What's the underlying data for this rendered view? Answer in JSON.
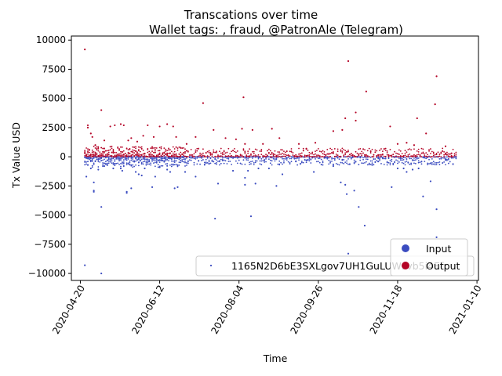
{
  "chart_data": {
    "type": "scatter",
    "suptitle": "Transcations over time",
    "title": "Wallet tags: , fraud, @PatronAle (Telegram)",
    "xlabel": "Time",
    "ylabel": "Tx Value USD",
    "xlim": [
      "2020-04-14",
      "2021-01-11"
    ],
    "ylim": [
      -10600,
      10350
    ],
    "x_ticks": [
      "2020-04-20",
      "2020-06-12",
      "2020-08-04",
      "2020-09-26",
      "2020-11-18",
      "2021-01-10"
    ],
    "y_ticks": [
      -10000,
      -7500,
      -5000,
      -2500,
      0,
      2500,
      5000,
      7500,
      10000
    ],
    "y_tick_labels": [
      "−10000",
      "−7500",
      "−5000",
      "−2500",
      "0",
      "2500",
      "5000",
      "7500",
      "10000"
    ],
    "grid": false,
    "legend_location": "lower right",
    "series": [
      {
        "name": "Input",
        "color": "#3b4cc0",
        "points": [
          [
            "2020-04-23",
            -9300
          ],
          [
            "2020-04-24",
            -1700
          ],
          [
            "2020-04-25",
            -700
          ],
          [
            "2020-04-27",
            -1000
          ],
          [
            "2020-04-29",
            -2200
          ],
          [
            "2020-04-29",
            -2900
          ],
          [
            "2020-04-29",
            -3000
          ],
          [
            "2020-05-02",
            -1100
          ],
          [
            "2020-05-04",
            -4300
          ],
          [
            "2020-05-04",
            -10000
          ],
          [
            "2020-05-06",
            -800
          ],
          [
            "2020-05-08",
            -700
          ],
          [
            "2020-05-12",
            -1000
          ],
          [
            "2020-05-13",
            -600
          ],
          [
            "2020-05-17",
            -1000
          ],
          [
            "2020-05-18",
            -1200
          ],
          [
            "2020-05-21",
            -3000
          ],
          [
            "2020-05-21",
            -3100
          ],
          [
            "2020-05-24",
            -2700
          ],
          [
            "2020-05-27",
            -1300
          ],
          [
            "2020-05-29",
            -1500
          ],
          [
            "2020-05-31",
            -1600
          ],
          [
            "2020-06-02",
            -1000
          ],
          [
            "2020-06-05",
            -400
          ],
          [
            "2020-06-07",
            -2600
          ],
          [
            "2020-06-09",
            -1700
          ],
          [
            "2020-06-12",
            -900
          ],
          [
            "2020-06-17",
            -1100
          ],
          [
            "2020-06-19",
            -1300
          ],
          [
            "2020-06-22",
            -2700
          ],
          [
            "2020-06-24",
            -2600
          ],
          [
            "2020-06-29",
            -1300
          ],
          [
            "2020-07-06",
            -1700
          ],
          [
            "2020-07-15",
            -600
          ],
          [
            "2020-07-19",
            -5300
          ],
          [
            "2020-07-21",
            -2300
          ],
          [
            "2020-07-31",
            -1200
          ],
          [
            "2020-08-08",
            -2400
          ],
          [
            "2020-08-08",
            -1800
          ],
          [
            "2020-08-10",
            -1200
          ],
          [
            "2020-08-12",
            -5100
          ],
          [
            "2020-08-15",
            -2300
          ],
          [
            "2020-08-17",
            -1000
          ],
          [
            "2020-08-24",
            -1000
          ],
          [
            "2020-08-29",
            -2500
          ],
          [
            "2020-09-02",
            -1500
          ],
          [
            "2020-09-11",
            -400
          ],
          [
            "2020-09-23",
            -1300
          ],
          [
            "2020-10-06",
            -800
          ],
          [
            "2020-10-11",
            -2200
          ],
          [
            "2020-10-14",
            -2400
          ],
          [
            "2020-10-15",
            -3200
          ],
          [
            "2020-10-16",
            -8300
          ],
          [
            "2020-10-20",
            -2900
          ],
          [
            "2020-10-23",
            -4300
          ],
          [
            "2020-10-27",
            -5900
          ],
          [
            "2020-11-01",
            -700
          ],
          [
            "2020-11-05",
            -400
          ],
          [
            "2020-11-14",
            -2600
          ],
          [
            "2020-11-18",
            -1000
          ],
          [
            "2020-11-22",
            -1000
          ],
          [
            "2020-11-24",
            -1300
          ],
          [
            "2020-11-28",
            -1100
          ],
          [
            "2020-12-02",
            -1000
          ],
          [
            "2020-12-05",
            -3400
          ],
          [
            "2020-12-10",
            -2100
          ],
          [
            "2020-12-14",
            -4500
          ],
          [
            "2020-12-14",
            -6900
          ],
          [
            "2020-12-20",
            -200
          ]
        ]
      },
      {
        "name": "Output",
        "color": "#b40426",
        "points": [
          [
            "2020-04-23",
            9200
          ],
          [
            "2020-04-25",
            2500
          ],
          [
            "2020-04-25",
            2700
          ],
          [
            "2020-04-27",
            2000
          ],
          [
            "2020-04-28",
            1700
          ],
          [
            "2020-04-30",
            1000
          ],
          [
            "2020-05-04",
            4000
          ],
          [
            "2020-05-06",
            1400
          ],
          [
            "2020-05-10",
            2600
          ],
          [
            "2020-05-13",
            2700
          ],
          [
            "2020-05-17",
            2800
          ],
          [
            "2020-05-19",
            2700
          ],
          [
            "2020-05-22",
            1400
          ],
          [
            "2020-05-24",
            1600
          ],
          [
            "2020-05-28",
            1300
          ],
          [
            "2020-06-01",
            1800
          ],
          [
            "2020-06-04",
            2700
          ],
          [
            "2020-06-08",
            1700
          ],
          [
            "2020-06-12",
            2600
          ],
          [
            "2020-06-17",
            2800
          ],
          [
            "2020-06-21",
            2600
          ],
          [
            "2020-06-23",
            1700
          ],
          [
            "2020-06-30",
            1100
          ],
          [
            "2020-07-06",
            1700
          ],
          [
            "2020-07-11",
            4600
          ],
          [
            "2020-07-18",
            2300
          ],
          [
            "2020-07-26",
            1600
          ],
          [
            "2020-08-02",
            1500
          ],
          [
            "2020-08-06",
            2400
          ],
          [
            "2020-08-07",
            5100
          ],
          [
            "2020-08-08",
            1100
          ],
          [
            "2020-08-13",
            2300
          ],
          [
            "2020-08-20",
            1100
          ],
          [
            "2020-08-26",
            2400
          ],
          [
            "2020-08-31",
            1600
          ],
          [
            "2020-09-13",
            1100
          ],
          [
            "2020-09-18",
            700
          ],
          [
            "2020-09-24",
            1200
          ],
          [
            "2020-10-06",
            2200
          ],
          [
            "2020-10-12",
            2300
          ],
          [
            "2020-10-14",
            3300
          ],
          [
            "2020-10-16",
            8200
          ],
          [
            "2020-10-21",
            3800
          ],
          [
            "2020-10-21",
            3100
          ],
          [
            "2020-10-28",
            5600
          ],
          [
            "2020-11-13",
            2600
          ],
          [
            "2020-11-18",
            1100
          ],
          [
            "2020-11-24",
            1200
          ],
          [
            "2020-11-29",
            1000
          ],
          [
            "2020-12-01",
            3300
          ],
          [
            "2020-12-07",
            2000
          ],
          [
            "2020-12-13",
            4500
          ],
          [
            "2020-12-14",
            6900
          ],
          [
            "2020-12-20",
            900
          ],
          [
            "2020-12-24",
            300
          ]
        ]
      }
    ],
    "near_zero_band": {
      "x_range": [
        "2020-04-23",
        "2020-12-27"
      ],
      "input_range": [
        -900,
        0
      ],
      "output_range": [
        0,
        900
      ],
      "density": "dense through Jun 2020, sparser afterwards"
    },
    "legends": [
      {
        "location": "lower right",
        "entries": [
          {
            "label": "1165N2D6bE3SXLgov7UH1GuLUWsvb5i4Ef",
            "marker": "dot-small",
            "color": "#3b4cc0"
          },
          {
            "label": "Input",
            "marker": "circle",
            "color": "#3b4cc0"
          },
          {
            "label": "Output",
            "marker": "circle",
            "color": "#b40426"
          }
        ]
      }
    ]
  }
}
